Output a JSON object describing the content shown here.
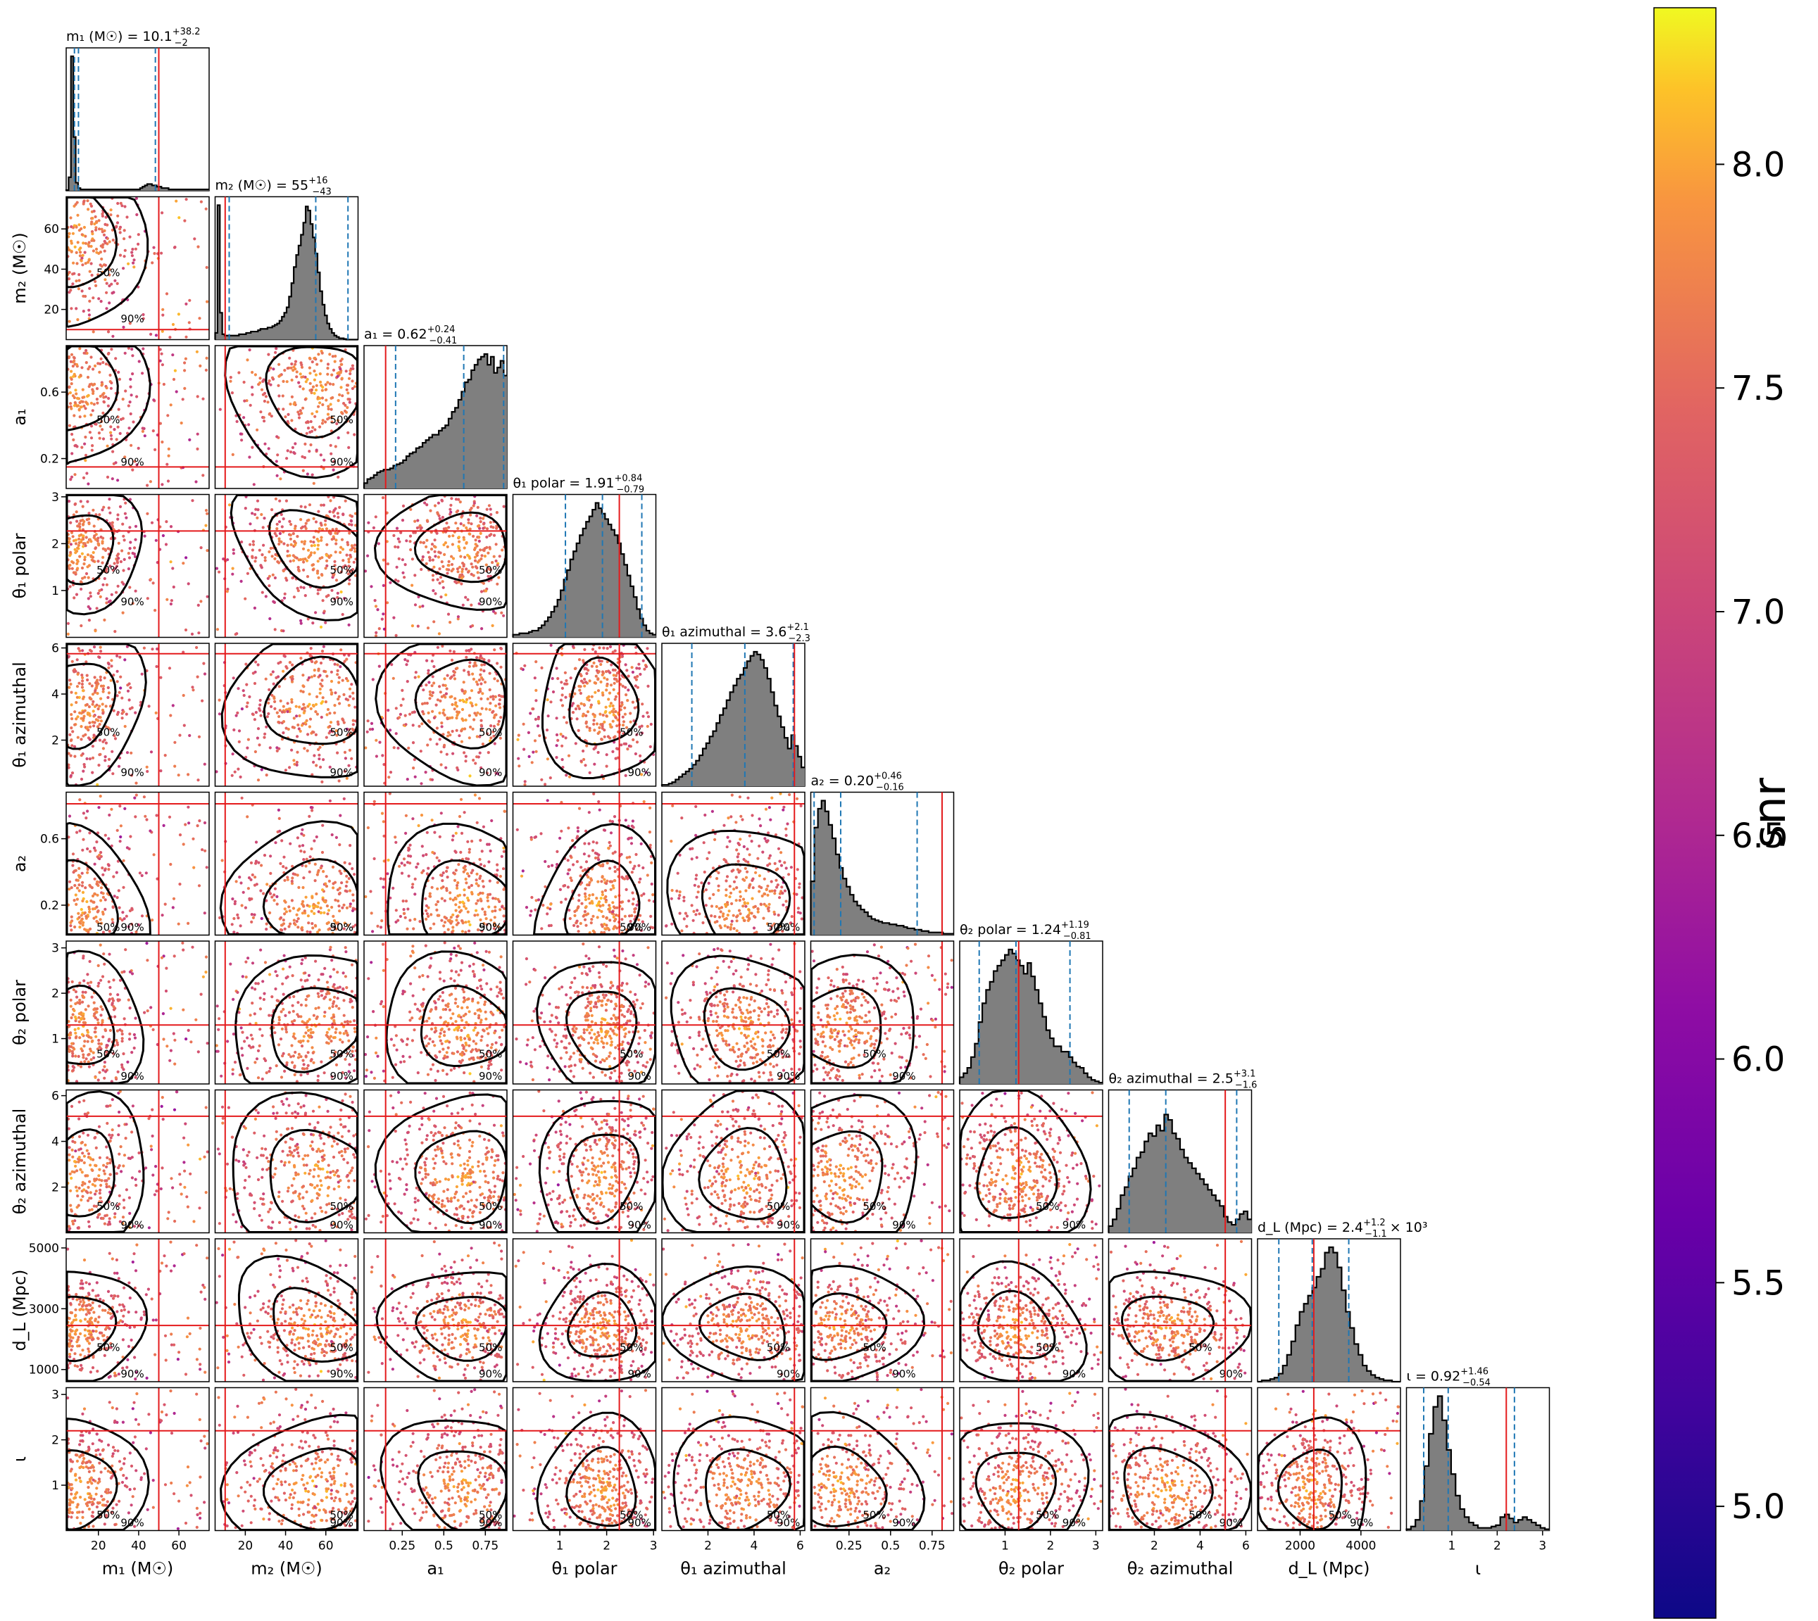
{
  "chart_data": {
    "type": "scatter",
    "subtype": "corner-plot",
    "parameters": [
      {
        "key": "m1",
        "axis_label": "m₁ (M☉)",
        "axis_label_italic": "m",
        "title": "m₁ (M☉) = 10.1",
        "title_sup": "+38.2",
        "title_sub": "−2",
        "range": [
          4,
          75
        ],
        "ticks": [
          20,
          40,
          60
        ],
        "truth": 50,
        "median": 10.1,
        "q_low": 8.1,
        "q_high": 48.3
      },
      {
        "key": "m2",
        "axis_label": "m₂ (M☉)",
        "title": "m₂ (M☉) = 55",
        "title_sup": "+16",
        "title_sub": "−43",
        "range": [
          5,
          76
        ],
        "ticks": [
          20,
          40,
          60
        ],
        "truth": 10,
        "median": 55,
        "q_low": 12,
        "q_high": 71
      },
      {
        "key": "a1",
        "axis_label": "a₁",
        "title": "a₁ = 0.62",
        "title_sup": "+0.24",
        "title_sub": "−0.41",
        "range": [
          0.02,
          0.88
        ],
        "ticks": [
          0.25,
          0.5,
          0.75
        ],
        "ticks_y": [
          0.2,
          0.6
        ],
        "truth": 0.15,
        "median": 0.62,
        "q_low": 0.21,
        "q_high": 0.86
      },
      {
        "key": "theta1_polar",
        "axis_label": "θ₁ polar",
        "title": "θ₁ polar = 1.91",
        "title_sup": "+0.84",
        "title_sub": "−0.79",
        "range": [
          0,
          3.05
        ],
        "ticks": [
          1,
          2,
          3
        ],
        "truth": 2.27,
        "median": 1.91,
        "q_low": 1.12,
        "q_high": 2.75
      },
      {
        "key": "theta1_azimuthal",
        "axis_label": "θ₁ azimuthal",
        "title": "θ₁ azimuthal = 3.6",
        "title_sup": "+2.1",
        "title_sub": "−2.3",
        "range": [
          0,
          6.2
        ],
        "ticks": [
          2,
          4,
          6
        ],
        "truth": 5.75,
        "median": 3.6,
        "q_low": 1.3,
        "q_high": 5.7
      },
      {
        "key": "a2",
        "axis_label": "a₂",
        "title": "a₂ = 0.20",
        "title_sup": "+0.46",
        "title_sub": "−0.16",
        "range": [
          0.02,
          0.88
        ],
        "ticks": [
          0.25,
          0.5,
          0.75
        ],
        "ticks_y": [
          0.2,
          0.6
        ],
        "truth": 0.81,
        "median": 0.2,
        "q_low": 0.04,
        "q_high": 0.66
      },
      {
        "key": "theta2_polar",
        "axis_label": "θ₂ polar",
        "title": "θ₂ polar = 1.24",
        "title_sup": "+1.19",
        "title_sub": "−0.81",
        "range": [
          0,
          3.15
        ],
        "ticks": [
          1,
          2,
          3
        ],
        "truth": 1.3,
        "median": 1.24,
        "q_low": 0.43,
        "q_high": 2.43
      },
      {
        "key": "theta2_azimuthal",
        "axis_label": "θ₂ azimuthal",
        "title": "θ₂ azimuthal = 2.5",
        "title_sup": "+3.1",
        "title_sub": "−1.6",
        "range": [
          0,
          6.25
        ],
        "ticks": [
          2,
          4,
          6
        ],
        "truth": 5.1,
        "median": 2.5,
        "q_low": 0.9,
        "q_high": 5.6
      },
      {
        "key": "dL",
        "axis_label": "d_L (Mpc)",
        "title": "d_L (Mpc) = 2.4",
        "title_sup": "+1.2",
        "title_sub": "−1.1",
        "title_suffix": "× 10³",
        "range": [
          600,
          5300
        ],
        "ticks": [
          2000,
          4000
        ],
        "ticks_y": [
          1000,
          3000,
          5000
        ],
        "truth": 2450,
        "median": 2400,
        "q_low": 1300,
        "q_high": 3600
      },
      {
        "key": "iota",
        "axis_label": "ι",
        "title": "ι = 0.92",
        "title_sup": "+1.46",
        "title_sub": "−0.54",
        "range": [
          0,
          3.15
        ],
        "ticks": [
          1,
          2,
          3
        ],
        "truth": 2.2,
        "median": 0.92,
        "q_low": 0.38,
        "q_high": 2.38
      }
    ],
    "diag_hist": [
      [
        0.5,
        10,
        100,
        40,
        6,
        2,
        1,
        1,
        1,
        1,
        1,
        1,
        1,
        1,
        1,
        1,
        1,
        1,
        1,
        1,
        1,
        1,
        1,
        1,
        1,
        1,
        1,
        1,
        1,
        1,
        1,
        2,
        3,
        4,
        5,
        5,
        4,
        4,
        3,
        3,
        2,
        2,
        2,
        1,
        1,
        1,
        1,
        1,
        1,
        1,
        1,
        1,
        1,
        1,
        1,
        1,
        1,
        1,
        1,
        1
      ],
      [
        5,
        100,
        20,
        4,
        3,
        3,
        3,
        3,
        3,
        3,
        4,
        4,
        4,
        5,
        5,
        6,
        6,
        6,
        7,
        8,
        8,
        8,
        9,
        9,
        10,
        11,
        12,
        14,
        17,
        20,
        24,
        32,
        42,
        54,
        63,
        70,
        78,
        87,
        99,
        96,
        86,
        76,
        64,
        50,
        36,
        26,
        18,
        12,
        8,
        5,
        3,
        2,
        1,
        1,
        0.5,
        0,
        0,
        0,
        0,
        0
      ],
      [
        4,
        7,
        8,
        10,
        12,
        13,
        14,
        14,
        15,
        17,
        18,
        19,
        21,
        24,
        26,
        27,
        30,
        31,
        34,
        36,
        38,
        40,
        40,
        43,
        45,
        47,
        52,
        57,
        60,
        66,
        72,
        79,
        81,
        88,
        92,
        96,
        98,
        100,
        92,
        98,
        86,
        90,
        95,
        84
      ],
      [
        2,
        2,
        3,
        3,
        3,
        4,
        5,
        5,
        7,
        9,
        12,
        15,
        19,
        23,
        28,
        35,
        43,
        50,
        58,
        64,
        70,
        76,
        81,
        86,
        90,
        95,
        100,
        96,
        92,
        88,
        84,
        80,
        76,
        70,
        62,
        54,
        46,
        38,
        30,
        21,
        14,
        9,
        5,
        3,
        2
      ],
      [
        1,
        1,
        2,
        3,
        5,
        7,
        9,
        11,
        13,
        16,
        19,
        23,
        28,
        32,
        37,
        41,
        47,
        53,
        58,
        64,
        70,
        75,
        80,
        83,
        88,
        93,
        97,
        100,
        98,
        94,
        88,
        80,
        70,
        60,
        52,
        44,
        36,
        28,
        38,
        30,
        22,
        14
      ],
      [
        40,
        80,
        94,
        100,
        92,
        82,
        72,
        60,
        50,
        42,
        36,
        30,
        25,
        22,
        19,
        17,
        14,
        12,
        11,
        10,
        9,
        9,
        8,
        8,
        7,
        7,
        6,
        5,
        5,
        4,
        4,
        3,
        3,
        2,
        2,
        2,
        2,
        1,
        1,
        1
      ],
      [
        5,
        8,
        12,
        20,
        30,
        46,
        60,
        70,
        76,
        84,
        88,
        92,
        96,
        100,
        97,
        92,
        88,
        82,
        90,
        80,
        70,
        60,
        50,
        40,
        34,
        28,
        28,
        24,
        24,
        20,
        16,
        13,
        12,
        8,
        5,
        3,
        2,
        1
      ],
      [
        5,
        10,
        18,
        28,
        34,
        42,
        48,
        56,
        60,
        68,
        74,
        72,
        80,
        76,
        88,
        84,
        74,
        70,
        62,
        56,
        52,
        48,
        44,
        40,
        36,
        32,
        28,
        24,
        20,
        12,
        8,
        6,
        10,
        14,
        16,
        10
      ],
      [
        0,
        1,
        1,
        2,
        3,
        6,
        12,
        20,
        30,
        42,
        52,
        58,
        64,
        70,
        78,
        84,
        96,
        100,
        96,
        85,
        68,
        52,
        40,
        28,
        20,
        12,
        8,
        5,
        3,
        2,
        1,
        1,
        0,
        0
      ],
      [
        1,
        3,
        8,
        22,
        48,
        72,
        92,
        100,
        82,
        60,
        42,
        26,
        16,
        10,
        6,
        4,
        2,
        2,
        2,
        3,
        4,
        10,
        12,
        9,
        6,
        8,
        10,
        8,
        6,
        4,
        2,
        1
      ]
    ],
    "truths_color": "#e41a1c",
    "quantile_color": "#1f77b4",
    "contour_levels": [
      "50%",
      "90%"
    ],
    "hist_fill": "#7f7f7f",
    "colorbar": {
      "label": "snr",
      "min": 4.75,
      "max": 8.35,
      "ticks": [
        5.0,
        5.5,
        6.0,
        6.5,
        7.0,
        7.5,
        8.0
      ],
      "tick_labels": [
        "5.0",
        "5.5",
        "6.0",
        "6.5",
        "7.0",
        "7.5",
        "8.0"
      ],
      "colormap": "plasma"
    }
  }
}
